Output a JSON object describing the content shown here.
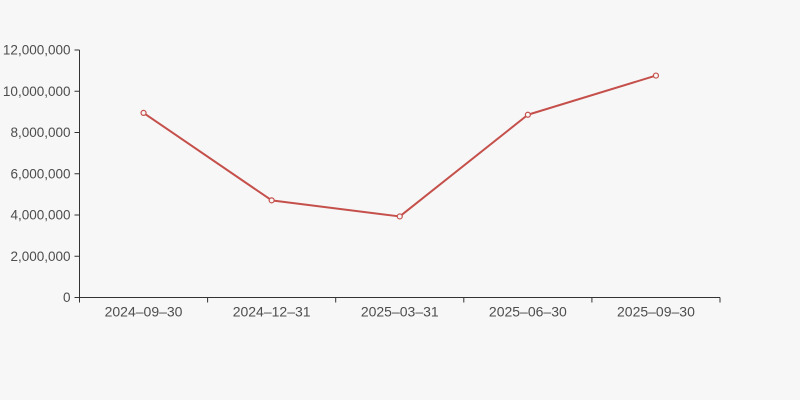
{
  "chart_data": {
    "type": "line",
    "title": "",
    "categories": [
      "2024–09–30",
      "2024–12–31",
      "2025–03–31",
      "2025–06–30",
      "2025–09–30"
    ],
    "series": [
      {
        "name": "series-1",
        "values": [
          8950000,
          4710000,
          3930000,
          8860000,
          10760000
        ]
      }
    ],
    "xlabel": "",
    "ylabel": "",
    "ylim": [
      0,
      12000000
    ],
    "y_tick_interval": 2000000,
    "y_tick_labels": [
      "0",
      "2,000,000",
      "4,000,000",
      "6,000,000",
      "8,000,000",
      "10,000,000",
      "12,000,000"
    ],
    "grid": false,
    "legend": false,
    "marker": "hollow-circle",
    "colors": {
      "background": "#f7f7f7",
      "line": "#c5504b",
      "axis": "#333333",
      "label": "#4d4d4d",
      "marker_fill": "#f7f7f7"
    }
  }
}
